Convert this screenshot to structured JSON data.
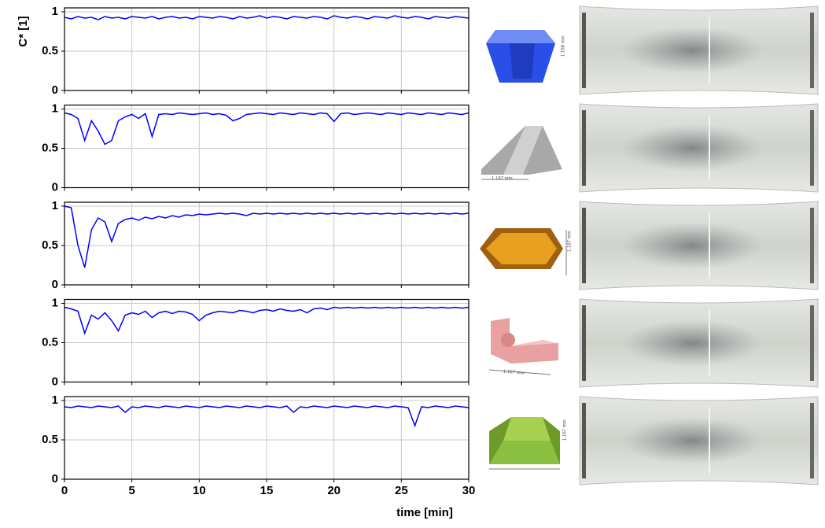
{
  "chart_data": [
    {
      "type": "line",
      "ylabel": "C* [1]",
      "color": "#0000ff",
      "xlim": [
        0,
        30
      ],
      "ylim": [
        0,
        1.05
      ],
      "xticks": [
        0,
        5,
        10,
        15,
        20,
        25,
        30
      ],
      "yticks": [
        0,
        0.5,
        1
      ],
      "grid": true,
      "xticklabels": false,
      "shape_label": "1.168 mm",
      "x": [
        0,
        0.5,
        1,
        1.5,
        2,
        2.5,
        3,
        3.5,
        4,
        4.5,
        5,
        5.5,
        6,
        6.5,
        7,
        7.5,
        8,
        8.5,
        9,
        9.5,
        10,
        10.5,
        11,
        11.5,
        12,
        12.5,
        13,
        13.5,
        14,
        14.5,
        15,
        15.5,
        16,
        16.5,
        17,
        17.5,
        18,
        18.5,
        19,
        19.5,
        20,
        20.5,
        21,
        21.5,
        22,
        22.5,
        23,
        23.5,
        24,
        24.5,
        25,
        25.5,
        26,
        26.5,
        27,
        27.5,
        28,
        28.5,
        29,
        29.5,
        30
      ],
      "values": [
        0.93,
        0.91,
        0.94,
        0.92,
        0.93,
        0.9,
        0.94,
        0.92,
        0.93,
        0.91,
        0.94,
        0.93,
        0.92,
        0.94,
        0.91,
        0.93,
        0.94,
        0.92,
        0.93,
        0.91,
        0.94,
        0.93,
        0.92,
        0.94,
        0.93,
        0.91,
        0.94,
        0.92,
        0.93,
        0.95,
        0.92,
        0.94,
        0.93,
        0.91,
        0.94,
        0.93,
        0.92,
        0.94,
        0.93,
        0.91,
        0.95,
        0.93,
        0.92,
        0.94,
        0.93,
        0.91,
        0.94,
        0.93,
        0.92,
        0.95,
        0.93,
        0.92,
        0.94,
        0.93,
        0.91,
        0.94,
        0.93,
        0.92,
        0.94,
        0.93,
        0.92
      ]
    },
    {
      "type": "line",
      "color": "#0000ff",
      "xlim": [
        0,
        30
      ],
      "ylim": [
        0,
        1.05
      ],
      "xticks": [
        0,
        5,
        10,
        15,
        20,
        25,
        30
      ],
      "yticks": [
        0,
        0.5,
        1
      ],
      "grid": true,
      "xticklabels": false,
      "shape_label": "1.167 mm",
      "x": [
        0,
        0.5,
        1,
        1.5,
        2,
        2.5,
        3,
        3.5,
        4,
        4.5,
        5,
        5.5,
        6,
        6.5,
        7,
        7.5,
        8,
        8.5,
        9,
        9.5,
        10,
        10.5,
        11,
        11.5,
        12,
        12.5,
        13,
        13.5,
        14,
        14.5,
        15,
        15.5,
        16,
        16.5,
        17,
        17.5,
        18,
        18.5,
        19,
        19.5,
        20,
        20.5,
        21,
        21.5,
        22,
        22.5,
        23,
        23.5,
        24,
        24.5,
        25,
        25.5,
        26,
        26.5,
        27,
        27.5,
        28,
        28.5,
        29,
        29.5,
        30
      ],
      "values": [
        0.95,
        0.93,
        0.88,
        0.6,
        0.85,
        0.72,
        0.55,
        0.6,
        0.85,
        0.9,
        0.93,
        0.88,
        0.94,
        0.65,
        0.93,
        0.94,
        0.93,
        0.95,
        0.94,
        0.93,
        0.94,
        0.95,
        0.93,
        0.94,
        0.92,
        0.85,
        0.88,
        0.93,
        0.94,
        0.95,
        0.94,
        0.93,
        0.95,
        0.94,
        0.93,
        0.95,
        0.94,
        0.93,
        0.95,
        0.94,
        0.84,
        0.94,
        0.95,
        0.93,
        0.94,
        0.95,
        0.94,
        0.93,
        0.95,
        0.94,
        0.93,
        0.95,
        0.94,
        0.93,
        0.95,
        0.94,
        0.93,
        0.95,
        0.94,
        0.93,
        0.95
      ]
    },
    {
      "type": "line",
      "color": "#0000ff",
      "xlim": [
        0,
        30
      ],
      "ylim": [
        0,
        1.05
      ],
      "xticks": [
        0,
        5,
        10,
        15,
        20,
        25,
        30
      ],
      "yticks": [
        0,
        0.5,
        1
      ],
      "grid": true,
      "xticklabels": false,
      "shape_label": "1.167 mm",
      "x": [
        0,
        0.5,
        1,
        1.5,
        2,
        2.5,
        3,
        3.5,
        4,
        4.5,
        5,
        5.5,
        6,
        6.5,
        7,
        7.5,
        8,
        8.5,
        9,
        9.5,
        10,
        10.5,
        11,
        11.5,
        12,
        12.5,
        13,
        13.5,
        14,
        14.5,
        15,
        15.5,
        16,
        16.5,
        17,
        17.5,
        18,
        18.5,
        19,
        19.5,
        20,
        20.5,
        21,
        21.5,
        22,
        22.5,
        23,
        23.5,
        24,
        24.5,
        25,
        25.5,
        26,
        26.5,
        27,
        27.5,
        28,
        28.5,
        29,
        29.5,
        30
      ],
      "values": [
        1.0,
        0.98,
        0.5,
        0.22,
        0.7,
        0.85,
        0.8,
        0.55,
        0.78,
        0.83,
        0.85,
        0.82,
        0.86,
        0.84,
        0.87,
        0.85,
        0.88,
        0.86,
        0.89,
        0.88,
        0.9,
        0.89,
        0.9,
        0.91,
        0.9,
        0.91,
        0.9,
        0.88,
        0.91,
        0.9,
        0.91,
        0.9,
        0.91,
        0.9,
        0.91,
        0.9,
        0.91,
        0.9,
        0.91,
        0.9,
        0.91,
        0.9,
        0.91,
        0.9,
        0.91,
        0.9,
        0.91,
        0.9,
        0.91,
        0.9,
        0.91,
        0.9,
        0.91,
        0.9,
        0.91,
        0.9,
        0.91,
        0.9,
        0.91,
        0.9,
        0.91
      ]
    },
    {
      "type": "line",
      "color": "#0000ff",
      "xlim": [
        0,
        30
      ],
      "ylim": [
        0,
        1.05
      ],
      "xticks": [
        0,
        5,
        10,
        15,
        20,
        25,
        30
      ],
      "yticks": [
        0,
        0.5,
        1
      ],
      "grid": true,
      "xticklabels": false,
      "shape_label": "1.167 mm",
      "x": [
        0,
        0.5,
        1,
        1.5,
        2,
        2.5,
        3,
        3.5,
        4,
        4.5,
        5,
        5.5,
        6,
        6.5,
        7,
        7.5,
        8,
        8.5,
        9,
        9.5,
        10,
        10.5,
        11,
        11.5,
        12,
        12.5,
        13,
        13.5,
        14,
        14.5,
        15,
        15.5,
        16,
        16.5,
        17,
        17.5,
        18,
        18.5,
        19,
        19.5,
        20,
        20.5,
        21,
        21.5,
        22,
        22.5,
        23,
        23.5,
        24,
        24.5,
        25,
        25.5,
        26,
        26.5,
        27,
        27.5,
        28,
        28.5,
        29,
        29.5,
        30
      ],
      "values": [
        0.95,
        0.93,
        0.9,
        0.62,
        0.85,
        0.8,
        0.88,
        0.78,
        0.65,
        0.85,
        0.88,
        0.86,
        0.9,
        0.82,
        0.88,
        0.9,
        0.87,
        0.9,
        0.89,
        0.86,
        0.78,
        0.85,
        0.88,
        0.9,
        0.89,
        0.88,
        0.91,
        0.9,
        0.88,
        0.91,
        0.92,
        0.9,
        0.93,
        0.91,
        0.9,
        0.92,
        0.88,
        0.93,
        0.94,
        0.92,
        0.95,
        0.94,
        0.95,
        0.94,
        0.95,
        0.94,
        0.95,
        0.94,
        0.95,
        0.94,
        0.95,
        0.94,
        0.95,
        0.94,
        0.95,
        0.94,
        0.95,
        0.94,
        0.95,
        0.94,
        0.95
      ]
    },
    {
      "type": "line",
      "xlabel": "time [min]",
      "color": "#0000ff",
      "xlim": [
        0,
        30
      ],
      "ylim": [
        0,
        1.05
      ],
      "xticks": [
        0,
        5,
        10,
        15,
        20,
        25,
        30
      ],
      "yticks": [
        0,
        0.5,
        1
      ],
      "grid": true,
      "xticklabels": true,
      "shape_label": "1.167 mm",
      "x": [
        0,
        0.5,
        1,
        1.5,
        2,
        2.5,
        3,
        3.5,
        4,
        4.5,
        5,
        5.5,
        6,
        6.5,
        7,
        7.5,
        8,
        8.5,
        9,
        9.5,
        10,
        10.5,
        11,
        11.5,
        12,
        12.5,
        13,
        13.5,
        14,
        14.5,
        15,
        15.5,
        16,
        16.5,
        17,
        17.5,
        18,
        18.5,
        19,
        19.5,
        20,
        20.5,
        21,
        21.5,
        22,
        22.5,
        23,
        23.5,
        24,
        24.5,
        25,
        25.5,
        26,
        26.5,
        27,
        27.5,
        28,
        28.5,
        29,
        29.5,
        30
      ],
      "values": [
        0.92,
        0.91,
        0.93,
        0.92,
        0.91,
        0.93,
        0.92,
        0.91,
        0.93,
        0.85,
        0.92,
        0.91,
        0.93,
        0.92,
        0.91,
        0.93,
        0.92,
        0.91,
        0.93,
        0.92,
        0.91,
        0.93,
        0.92,
        0.91,
        0.93,
        0.92,
        0.91,
        0.93,
        0.92,
        0.91,
        0.93,
        0.92,
        0.91,
        0.93,
        0.85,
        0.92,
        0.91,
        0.93,
        0.92,
        0.91,
        0.93,
        0.92,
        0.91,
        0.93,
        0.92,
        0.91,
        0.93,
        0.92,
        0.91,
        0.93,
        0.92,
        0.91,
        0.68,
        0.92,
        0.91,
        0.93,
        0.92,
        0.91,
        0.93,
        0.92,
        0.91
      ]
    }
  ]
}
